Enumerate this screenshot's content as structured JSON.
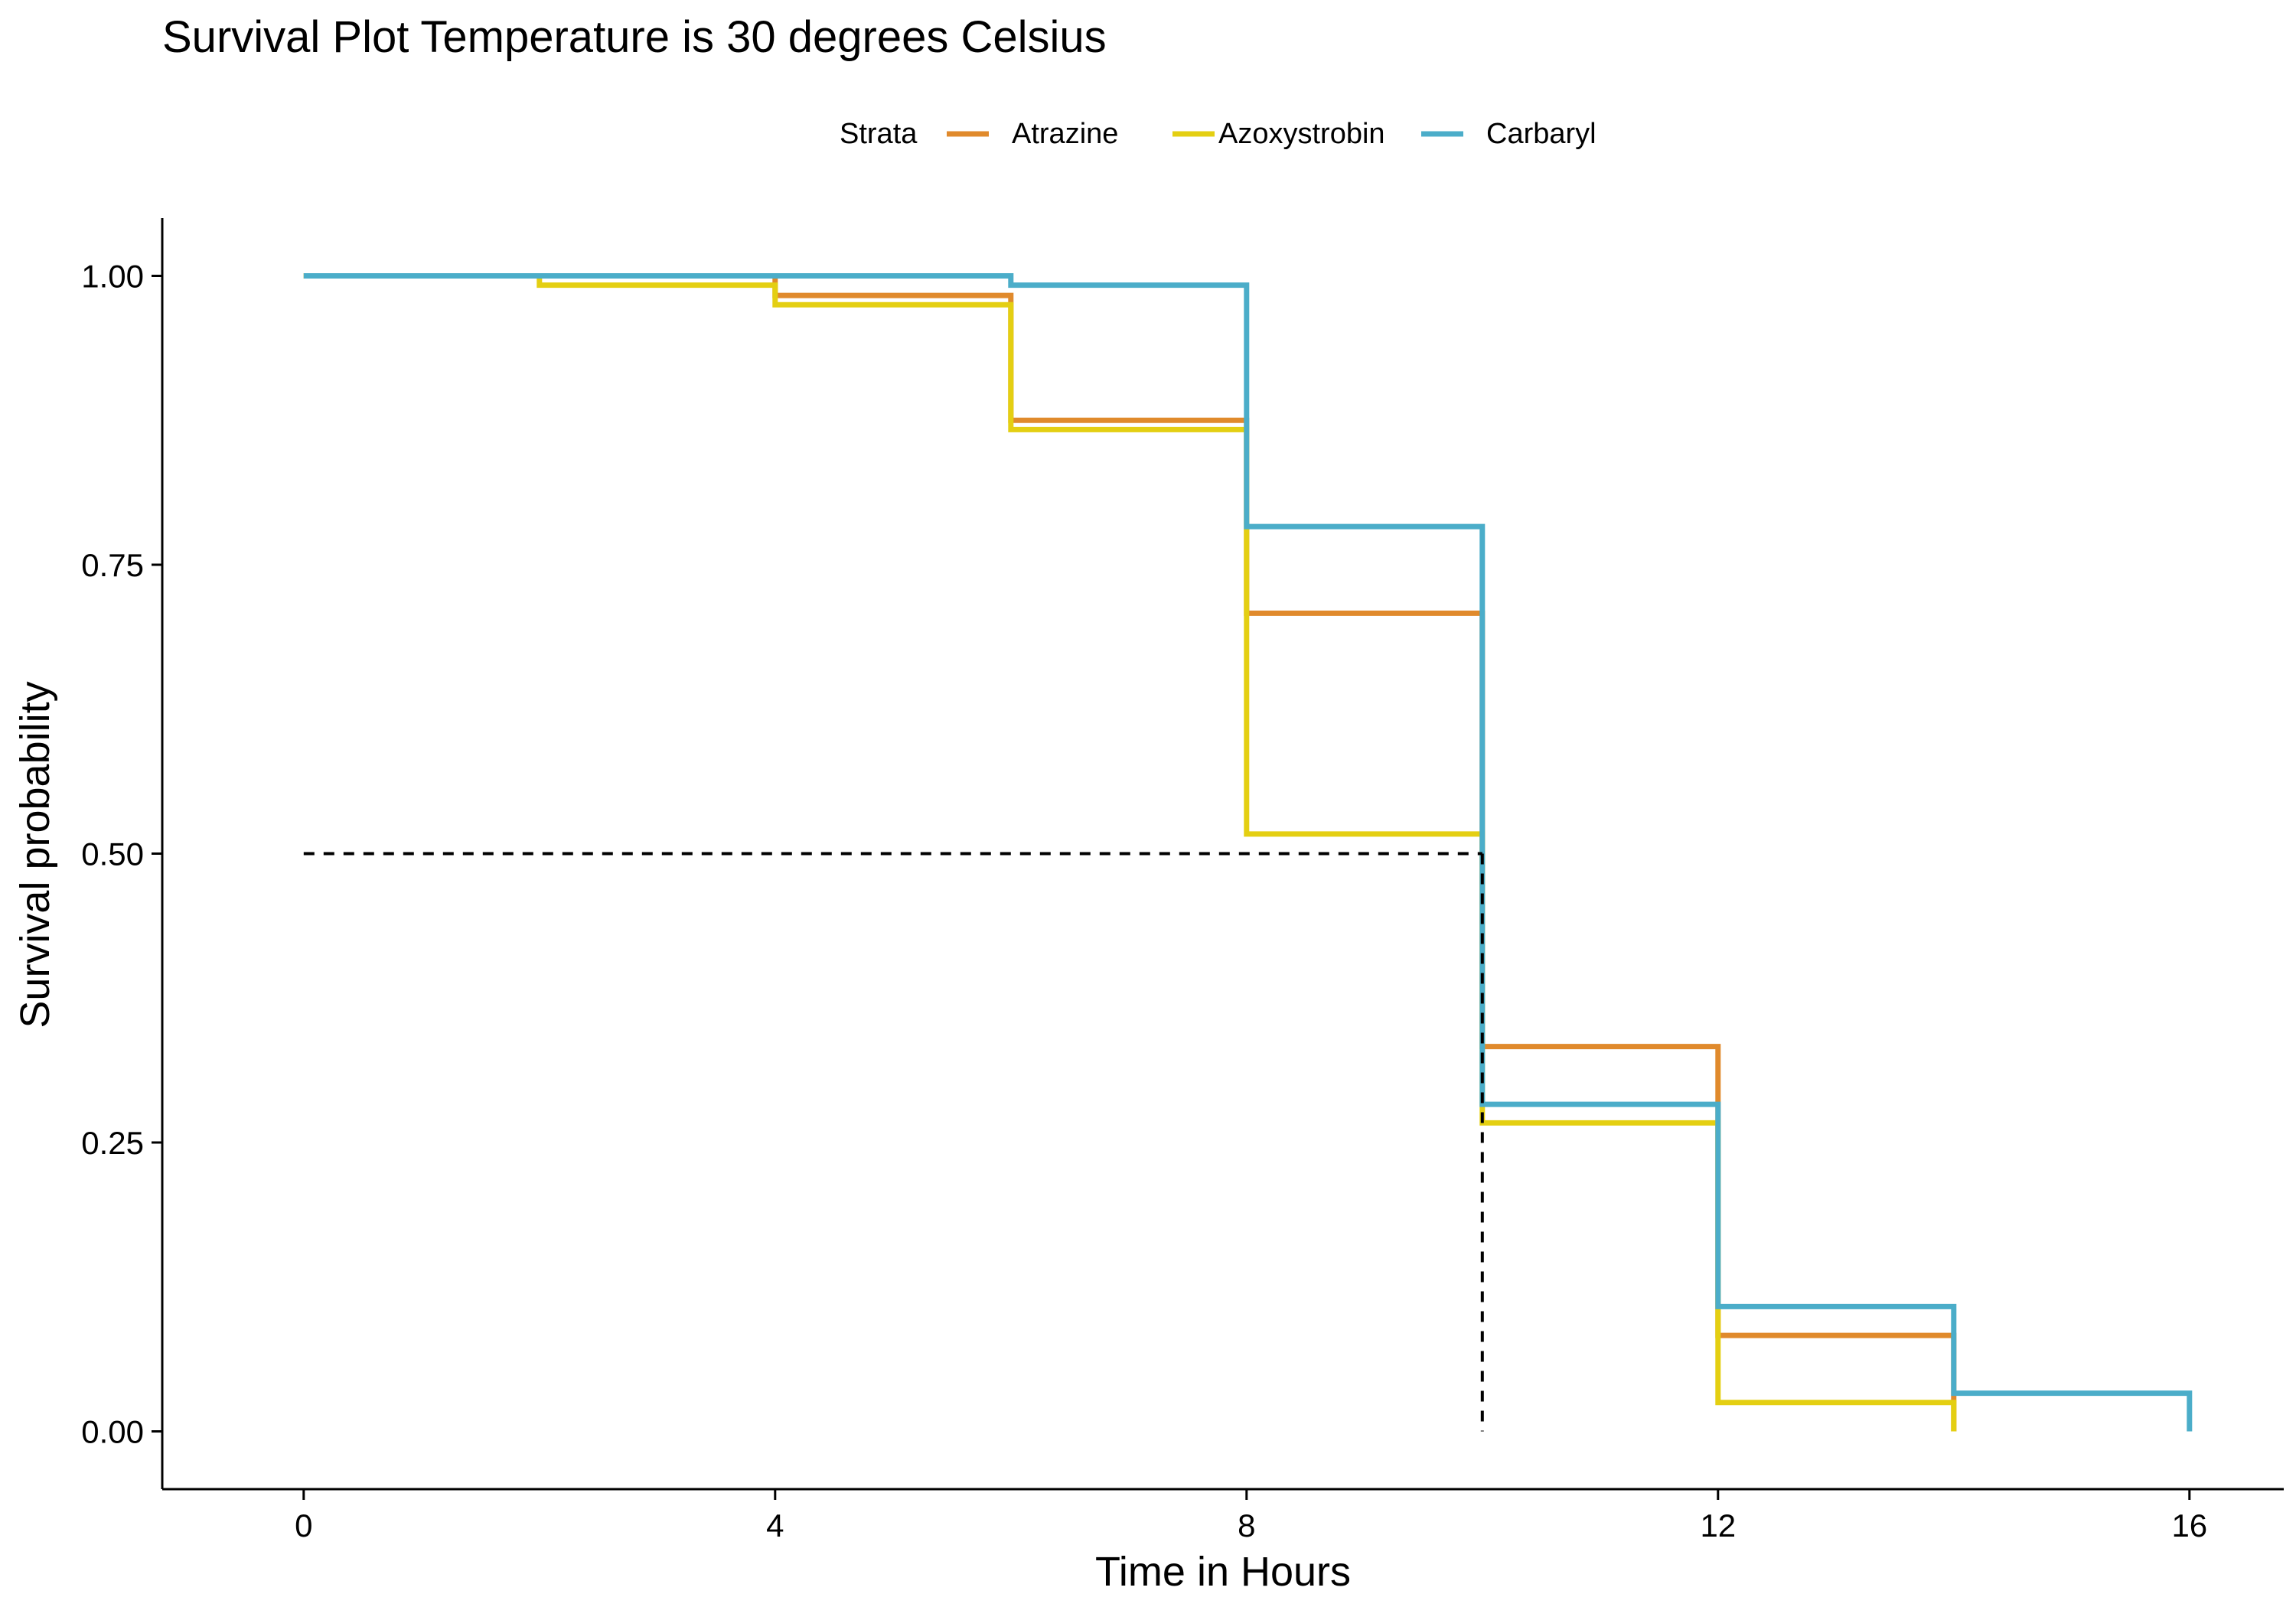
{
  "chart_data": {
    "type": "line",
    "step": true,
    "title": "Survival Plot Temperature is 30 degrees Celsius",
    "xlabel": "Time in Hours",
    "ylabel": "Survival probability",
    "xlim": [
      -1.2,
      16.8
    ],
    "ylim": [
      -0.05,
      1.05
    ],
    "xticks": [
      0,
      4,
      8,
      12,
      16
    ],
    "xtick_labels": [
      "0",
      "4",
      "8",
      "12",
      "16"
    ],
    "yticks": [
      0,
      0.25,
      0.5,
      0.75,
      1.0
    ],
    "ytick_labels": [
      "0.00",
      "0.25",
      "0.50",
      "0.75",
      "1.00"
    ],
    "grid": false,
    "legend": {
      "title": "Strata",
      "position": "top"
    },
    "series": [
      {
        "name": "Atrazine",
        "color": "#E08A2C",
        "x": [
          0,
          4,
          6,
          8,
          10,
          12,
          14
        ],
        "y": [
          1.0,
          0.983,
          0.875,
          0.708,
          0.333,
          0.083,
          0.0
        ]
      },
      {
        "name": "Azoxystrobin",
        "color": "#E4CF12",
        "x": [
          0,
          2,
          4,
          6,
          8,
          10,
          12,
          14
        ],
        "y": [
          1.0,
          0.992,
          0.975,
          0.867,
          0.517,
          0.267,
          0.025,
          0.0
        ]
      },
      {
        "name": "Carbaryl",
        "color": "#4BADC9",
        "x": [
          0,
          6,
          8,
          10,
          12,
          14,
          16
        ],
        "y": [
          1.0,
          0.992,
          0.783,
          0.283,
          0.108,
          0.033,
          0.0
        ]
      }
    ],
    "median_line": {
      "y": 0.5,
      "x": 10,
      "style": "dashed",
      "color": "#000000"
    }
  }
}
